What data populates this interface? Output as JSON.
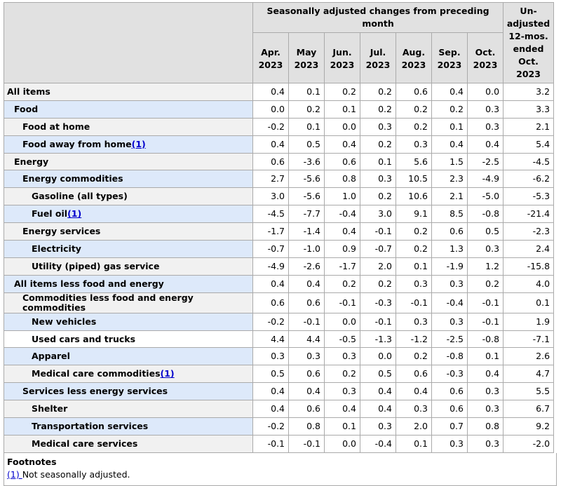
{
  "header": {
    "group_label": "Seasonally adjusted changes from preceding month",
    "unadjusted_label": "Un-adjusted 12-mos. ended Oct. 2023",
    "months": [
      "Apr. 2023",
      "May 2023",
      "Jun. 2023",
      "Jul. 2023",
      "Aug. 2023",
      "Sep. 2023",
      "Oct. 2023"
    ]
  },
  "rows": [
    {
      "label": "All items",
      "fn": "",
      "indent": 0,
      "style": "gray",
      "values": [
        "0.4",
        "0.1",
        "0.2",
        "0.2",
        "0.6",
        "0.4",
        "0.0",
        "3.2"
      ]
    },
    {
      "label": "Food",
      "fn": "",
      "indent": 1,
      "style": "shade",
      "values": [
        "0.0",
        "0.2",
        "0.1",
        "0.2",
        "0.2",
        "0.2",
        "0.3",
        "3.3"
      ]
    },
    {
      "label": "Food at home",
      "fn": "",
      "indent": 2,
      "style": "gray",
      "values": [
        "-0.2",
        "0.1",
        "0.0",
        "0.3",
        "0.2",
        "0.1",
        "0.3",
        "2.1"
      ]
    },
    {
      "label": "Food away from home",
      "fn": "(1)",
      "indent": 2,
      "style": "shade",
      "values": [
        "0.4",
        "0.5",
        "0.4",
        "0.2",
        "0.3",
        "0.4",
        "0.4",
        "5.4"
      ]
    },
    {
      "label": "Energy",
      "fn": "",
      "indent": 1,
      "style": "gray",
      "values": [
        "0.6",
        "-3.6",
        "0.6",
        "0.1",
        "5.6",
        "1.5",
        "-2.5",
        "-4.5"
      ]
    },
    {
      "label": "Energy commodities",
      "fn": "",
      "indent": 2,
      "style": "shade",
      "values": [
        "2.7",
        "-5.6",
        "0.8",
        "0.3",
        "10.5",
        "2.3",
        "-4.9",
        "-6.2"
      ]
    },
    {
      "label": "Gasoline (all types)",
      "fn": "",
      "indent": 3,
      "style": "gray",
      "values": [
        "3.0",
        "-5.6",
        "1.0",
        "0.2",
        "10.6",
        "2.1",
        "-5.0",
        "-5.3"
      ]
    },
    {
      "label": "Fuel oil",
      "fn": "(1)",
      "indent": 3,
      "style": "shade",
      "values": [
        "-4.5",
        "-7.7",
        "-0.4",
        "3.0",
        "9.1",
        "8.5",
        "-0.8",
        "-21.4"
      ]
    },
    {
      "label": "Energy services",
      "fn": "",
      "indent": 2,
      "style": "gray",
      "values": [
        "-1.7",
        "-1.4",
        "0.4",
        "-0.1",
        "0.2",
        "0.6",
        "0.5",
        "-2.3"
      ]
    },
    {
      "label": "Electricity",
      "fn": "",
      "indent": 3,
      "style": "shade",
      "values": [
        "-0.7",
        "-1.0",
        "0.9",
        "-0.7",
        "0.2",
        "1.3",
        "0.3",
        "2.4"
      ]
    },
    {
      "label": "Utility (piped) gas service",
      "fn": "",
      "indent": 3,
      "style": "gray",
      "values": [
        "-4.9",
        "-2.6",
        "-1.7",
        "2.0",
        "0.1",
        "-1.9",
        "1.2",
        "-15.8"
      ]
    },
    {
      "label": "All items less food and energy",
      "fn": "",
      "indent": 1,
      "style": "shade",
      "values": [
        "0.4",
        "0.4",
        "0.2",
        "0.2",
        "0.3",
        "0.3",
        "0.2",
        "4.0"
      ]
    },
    {
      "label": "Commodities less food and energy commodities",
      "fn": "",
      "indent": 2,
      "style": "gray",
      "values": [
        "0.6",
        "0.6",
        "-0.1",
        "-0.3",
        "-0.1",
        "-0.4",
        "-0.1",
        "0.1"
      ]
    },
    {
      "label": "New vehicles",
      "fn": "",
      "indent": 3,
      "style": "shade",
      "values": [
        "-0.2",
        "-0.1",
        "0.0",
        "-0.1",
        "0.3",
        "0.3",
        "-0.1",
        "1.9"
      ]
    },
    {
      "label": "Used cars and trucks",
      "fn": "",
      "indent": 3,
      "style": "white",
      "values": [
        "4.4",
        "4.4",
        "-0.5",
        "-1.3",
        "-1.2",
        "-2.5",
        "-0.8",
        "-7.1"
      ]
    },
    {
      "label": "Apparel",
      "fn": "",
      "indent": 3,
      "style": "shade",
      "values": [
        "0.3",
        "0.3",
        "0.3",
        "0.0",
        "0.2",
        "-0.8",
        "0.1",
        "2.6"
      ]
    },
    {
      "label": "Medical care commodities",
      "fn": "(1)",
      "indent": 3,
      "style": "gray",
      "values": [
        "0.5",
        "0.6",
        "0.2",
        "0.5",
        "0.6",
        "-0.3",
        "0.4",
        "4.7"
      ]
    },
    {
      "label": "Services less energy services",
      "fn": "",
      "indent": 2,
      "style": "shade",
      "values": [
        "0.4",
        "0.4",
        "0.3",
        "0.4",
        "0.4",
        "0.6",
        "0.3",
        "5.5"
      ]
    },
    {
      "label": "Shelter",
      "fn": "",
      "indent": 3,
      "style": "gray",
      "values": [
        "0.4",
        "0.6",
        "0.4",
        "0.4",
        "0.3",
        "0.6",
        "0.3",
        "6.7"
      ]
    },
    {
      "label": "Transportation services",
      "fn": "",
      "indent": 3,
      "style": "shade",
      "values": [
        "-0.2",
        "0.8",
        "0.1",
        "0.3",
        "2.0",
        "0.7",
        "0.8",
        "9.2"
      ]
    },
    {
      "label": "Medical care services",
      "fn": "",
      "indent": 3,
      "style": "gray",
      "values": [
        "-0.1",
        "-0.1",
        "0.0",
        "-0.4",
        "0.1",
        "0.3",
        "0.3",
        "-2.0"
      ]
    }
  ],
  "footnotes": {
    "title": "Footnotes",
    "items": [
      {
        "marker": "(1) ",
        "text": "Not seasonally adjusted."
      }
    ]
  },
  "colors": {
    "header_bg": "#e1e1e1",
    "row_shade": "#dde9fa",
    "row_gray": "#f1f1f1",
    "link": "#0000cc",
    "border": "#aaaaaa"
  }
}
